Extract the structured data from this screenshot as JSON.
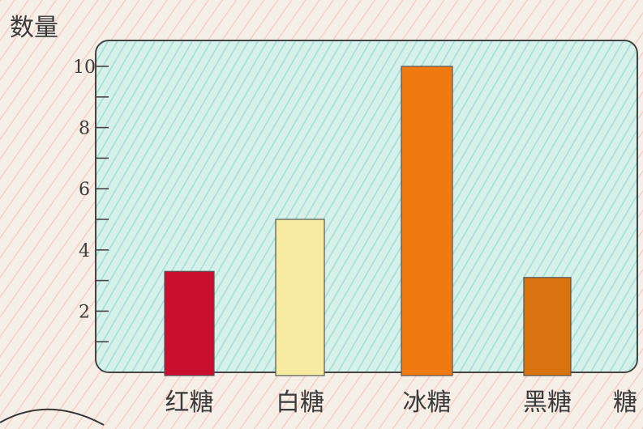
{
  "chart_data": {
    "type": "bar",
    "ylabel": "数量",
    "xlabel": "",
    "categories": [
      "红糖",
      "白糖",
      "冰糖",
      "黑糖"
    ],
    "values": [
      3.3,
      5,
      10,
      3.1
    ],
    "ylim": [
      0,
      10
    ],
    "yticks": [
      2,
      4,
      6,
      8,
      10
    ],
    "ytick_labels": [
      "2",
      "4",
      "6",
      "8",
      "10"
    ],
    "extra_label": "糖",
    "colors": {
      "bars": [
        "#c8102e",
        "#f6eba0",
        "#f07a12",
        "#d8730e"
      ],
      "plot_background": "#c9ece2",
      "paper_stroke": "#f2b6a8",
      "frame": "#444444"
    },
    "grid": false
  }
}
